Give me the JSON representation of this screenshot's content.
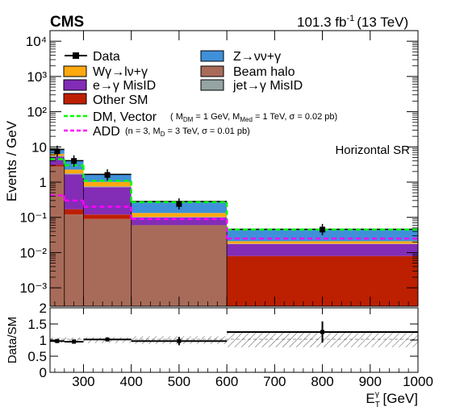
{
  "header": {
    "experiment": "CMS",
    "lumi_value": "101.3 fb",
    "lumi_exp": "-1",
    "lumi_energy": "(13 TeV)",
    "region": "Horizontal SR"
  },
  "legend": {
    "data": "Data",
    "wgamma": "Wγ→lν+γ",
    "misid_e": "e→γ MisID",
    "other_sm": "Other SM",
    "zgamma": "Z→νν+γ",
    "beam_halo": "Beam halo",
    "jet_misid": "jet→γ MisID",
    "dm_main": "DM, Vector",
    "dm_params": "(M_DM = 1 GeV, M_Med = 1 TeV, σ = 0.02 pb)",
    "add_main": "ADD",
    "add_params": "(n = 3, M_D = 3 TeV, σ = 0.01 pb)"
  },
  "colors": {
    "zgamma": "#3f90da",
    "wgamma": "#ffa90e",
    "misid_e": "#832db6",
    "beam_halo": "#a96b59",
    "jet_misid": "#94a4a2",
    "other_sm": "#bd1f01",
    "dm": "#00ff00",
    "add": "#ff00ff"
  },
  "chart_data": [
    {
      "type": "bar",
      "stacked": true,
      "log_y": true,
      "ylabel": "Events / GeV",
      "ylim": [
        0.0003,
        20000
      ],
      "xlim": [
        230,
        1000
      ],
      "bin_edges": [
        230,
        260,
        300,
        400,
        600,
        1000
      ],
      "y_ticks": [
        "10⁻³",
        "10⁻²",
        "10⁻¹",
        "1",
        "10",
        "10²",
        "10³",
        "10⁴"
      ],
      "y_tick_values": [
        0.001,
        0.01,
        0.1,
        1,
        10,
        100,
        1000,
        10000
      ],
      "series": [
        {
          "name": "Beam halo",
          "values": [
            2.8,
            0.12,
            0.09,
            0.06,
            0.0
          ]
        },
        {
          "name": "Other SM",
          "values": [
            0.3,
            0.05,
            0.03,
            0.0,
            0.008
          ]
        },
        {
          "name": "e→γ MisID",
          "values": [
            2.2,
            1.5,
            0.6,
            0.04,
            0.0095
          ]
        },
        {
          "name": "jet→γ MisID",
          "values": [
            0.3,
            0.1,
            0.04,
            0.003,
            0.0005
          ]
        },
        {
          "name": "Wγ→lν+γ",
          "values": [
            0.8,
            0.5,
            0.25,
            0.03,
            0.003
          ]
        },
        {
          "name": "Z→νν+γ",
          "values": [
            2.1,
            1.8,
            0.65,
            0.15,
            0.025
          ]
        }
      ],
      "data_points": {
        "x": [
          245,
          280,
          350,
          500,
          800
        ],
        "y": [
          7.5,
          4.0,
          1.6,
          0.24,
          0.045
        ]
      },
      "dm_values": [
        4.5,
        3.0,
        1.1,
        0.27,
        0.045
      ],
      "add_values": [
        0.42,
        0.3,
        0.2,
        0.09,
        0.025
      ]
    },
    {
      "type": "scatter",
      "ylabel": "Data/SM",
      "xlabel": "E_T^γ [GeV]",
      "ylim": [
        0,
        2
      ],
      "xlim": [
        230,
        1000
      ],
      "x_ticks": [
        300,
        400,
        500,
        600,
        700,
        800,
        900,
        1000
      ],
      "y_ticks": [
        0,
        0.5,
        1,
        1.5,
        2
      ],
      "bin_edges": [
        230,
        260,
        300,
        400,
        600,
        1000
      ],
      "ratio": [
        0.97,
        0.95,
        1.02,
        0.97,
        1.25
      ],
      "ratio_err": [
        0.05,
        0.05,
        0.05,
        0.13,
        0.33
      ],
      "x_centers": [
        245,
        280,
        350,
        500,
        800
      ],
      "band_halfwidth": [
        0.08,
        0.08,
        0.09,
        0.12,
        0.22
      ]
    }
  ]
}
